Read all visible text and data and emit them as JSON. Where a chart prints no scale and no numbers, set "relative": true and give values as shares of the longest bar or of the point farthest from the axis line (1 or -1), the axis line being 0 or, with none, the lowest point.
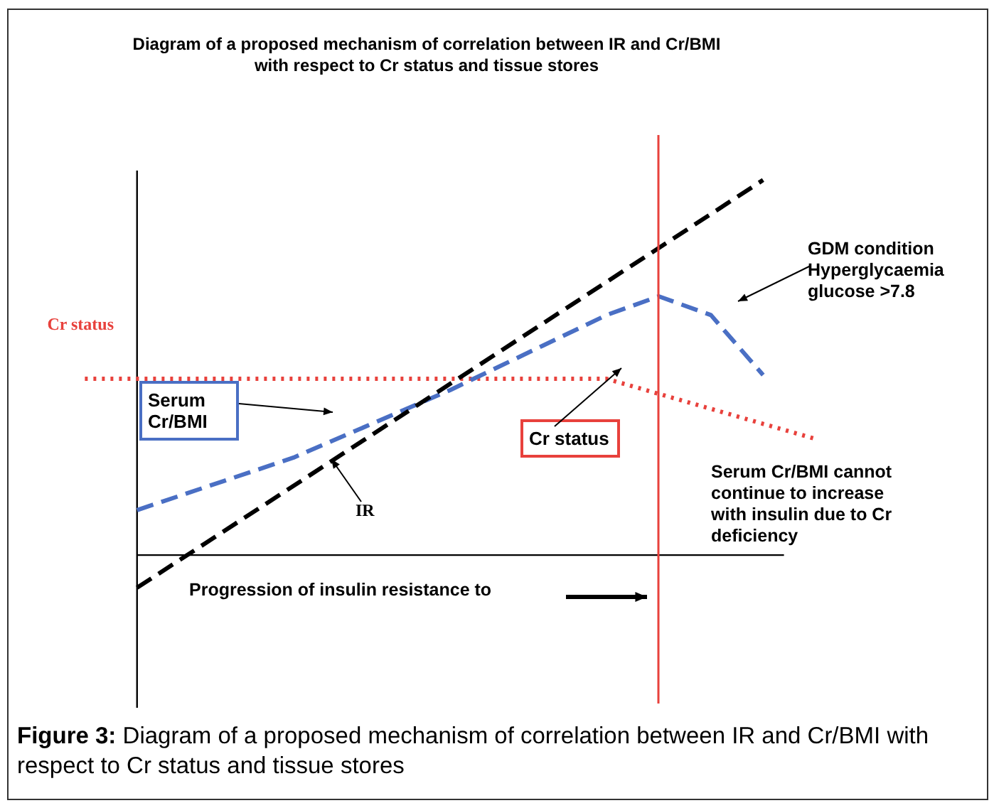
{
  "chart_data": {
    "type": "line",
    "title": "Diagram of a proposed mechanism of correlation between IR and Cr/BMI with respect to Cr status and tissue stores",
    "xlabel": "Progression of insulin resistance to",
    "relative": true,
    "marker": "none",
    "categories": [
      null,
      null,
      null,
      null,
      null,
      null,
      null,
      null,
      null,
      null,
      null,
      null,
      null,
      null,
      null,
      null,
      null
    ],
    "series": [
      {
        "name": "IR",
        "color": "#000000",
        "line_style": "dashed",
        "values": [
          null,
          null,
          -0.087,
          null,
          null,
          null,
          null,
          null,
          null,
          null,
          null,
          null,
          null,
          null,
          1,
          null,
          null
        ]
      },
      {
        "name": "Serum Cr/BMI",
        "color": "#4a6fc4",
        "line_style": "dashed",
        "values": [
          null,
          null,
          0.12,
          null,
          null,
          0.26,
          null,
          null,
          0.44,
          null,
          null,
          0.64,
          0.69,
          0.64,
          0.48,
          null,
          null
        ]
      },
      {
        "name": "Cr status",
        "color": "#e8413c",
        "line_style": "dotted",
        "values": [
          null,
          0.47,
          null,
          null,
          null,
          null,
          null,
          null,
          null,
          null,
          null,
          0.47,
          null,
          null,
          null,
          0.31,
          null
        ]
      }
    ],
    "annotations": [
      "GDM condition Hyperglycaemia glucose >7.8",
      "Serum Cr/BMI cannot continue to increase with insulin due to Cr deficiency",
      "Figure 3: Diagram of a proposed mechanism of correlation between IR and Cr/BMI with respect to Cr status and tissue stores"
    ]
  }
}
